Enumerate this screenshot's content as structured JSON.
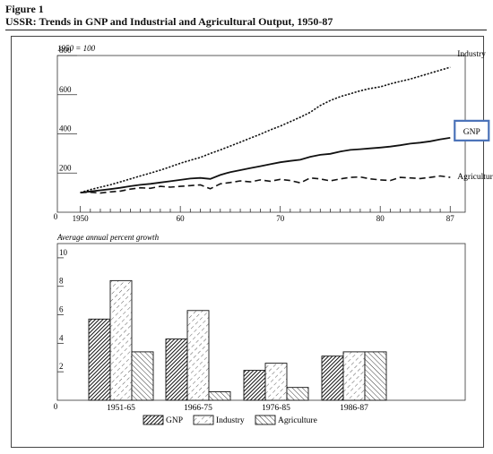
{
  "figure_label": "Figure 1",
  "title": "USSR: Trends in GNP and Industrial and Agricultural Output, 1950-87",
  "chart_data": [
    {
      "type": "line",
      "subtitle": "1950 = 100",
      "x": [
        1950,
        1951,
        1952,
        1953,
        1954,
        1955,
        1956,
        1957,
        1958,
        1959,
        1960,
        1961,
        1962,
        1963,
        1964,
        1965,
        1966,
        1967,
        1968,
        1969,
        1970,
        1971,
        1972,
        1973,
        1974,
        1975,
        1976,
        1977,
        1978,
        1979,
        1980,
        1981,
        1982,
        1983,
        1984,
        1985,
        1986,
        1987
      ],
      "series": [
        {
          "name": "Industry",
          "values": [
            100,
            115,
            128,
            140,
            155,
            170,
            185,
            200,
            215,
            232,
            250,
            265,
            280,
            300,
            318,
            338,
            358,
            378,
            398,
            420,
            440,
            462,
            485,
            510,
            545,
            570,
            590,
            605,
            620,
            632,
            640,
            655,
            668,
            680,
            695,
            710,
            725,
            740
          ]
        },
        {
          "name": "GNP",
          "values": [
            100,
            106,
            112,
            118,
            125,
            133,
            140,
            145,
            152,
            158,
            165,
            172,
            175,
            170,
            190,
            205,
            215,
            225,
            235,
            245,
            255,
            262,
            268,
            283,
            293,
            298,
            310,
            318,
            322,
            326,
            330,
            335,
            342,
            350,
            355,
            362,
            372,
            380
          ]
        },
        {
          "name": "Agriculture",
          "values": [
            100,
            102,
            98,
            104,
            108,
            118,
            125,
            122,
            132,
            128,
            132,
            136,
            140,
            120,
            145,
            152,
            160,
            155,
            165,
            158,
            168,
            162,
            150,
            175,
            170,
            160,
            170,
            178,
            180,
            170,
            165,
            162,
            178,
            175,
            172,
            178,
            185,
            178
          ]
        }
      ],
      "ylim": [
        0,
        800
      ],
      "yticks": [
        200,
        400,
        600,
        800
      ],
      "xtick_labels": [
        "1950",
        "60",
        "70",
        "80",
        "87"
      ],
      "y_origin_label": "0",
      "line_styles": {
        "Industry": "dotted",
        "GNP": "solid",
        "Agriculture": "dashed"
      }
    },
    {
      "type": "bar",
      "ylabel": "Average annual percent growth",
      "categories": [
        "1951-65",
        "1966-75",
        "1976-85",
        "1986-87"
      ],
      "series": [
        {
          "name": "GNP",
          "values": [
            5.7,
            4.3,
            2.1,
            3.1
          ]
        },
        {
          "name": "Industry",
          "values": [
            8.4,
            6.3,
            2.6,
            3.4
          ]
        },
        {
          "name": "Agriculture",
          "values": [
            3.4,
            0.6,
            0.9,
            3.4
          ]
        }
      ],
      "ylim": [
        0,
        11
      ],
      "yticks": [
        2,
        4,
        6,
        8,
        10
      ],
      "y_origin_label": "0",
      "legend_position": "bottom",
      "patterns": {
        "GNP": "dense-hatch",
        "Industry": "dashed-hatch",
        "Agriculture": "diagonal-hatch"
      }
    }
  ]
}
